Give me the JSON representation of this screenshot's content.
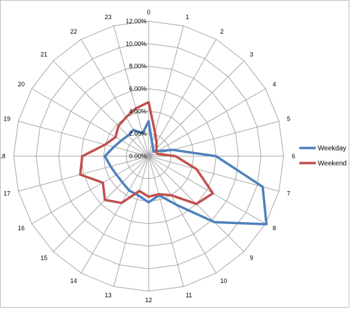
{
  "chart_data": {
    "type": "radar",
    "title": "",
    "categories": [
      "0",
      "1",
      "2",
      "3",
      "4",
      "5",
      "6",
      "7",
      "8",
      "9",
      "10",
      "11",
      "12",
      "13",
      "14",
      "15",
      "16",
      "17",
      "18",
      "19",
      "20",
      "21",
      "22",
      "23"
    ],
    "r_ticks": [
      "0.00%",
      "2.00%",
      "4.00%",
      "6.00%",
      "8.00%",
      "10.00%",
      "12.00%"
    ],
    "r_range": [
      0,
      12
    ],
    "grid": true,
    "legend_position": "right",
    "series": [
      {
        "name": "Weekday",
        "color": "#4f81bd",
        "values": [
          3.1,
          1.2,
          0.8,
          0.6,
          0.9,
          2.2,
          6.0,
          10.5,
          12.1,
          8.3,
          5.0,
          3.6,
          4.1,
          3.6,
          3.5,
          3.3,
          3.3,
          3.5,
          3.9,
          3.2,
          2.8,
          2.6,
          2.7,
          2.1
        ],
        "values_unit": "%"
      },
      {
        "name": "Weekend",
        "color": "#c0504d",
        "values": [
          4.8,
          2.2,
          1.4,
          1.0,
          0.8,
          0.8,
          2.4,
          4.4,
          6.6,
          6.0,
          4.0,
          3.5,
          3.6,
          3.2,
          4.8,
          5.5,
          4.7,
          6.3,
          5.9,
          4.0,
          3.4,
          3.8,
          4.0,
          4.4
        ],
        "values_unit": "%"
      }
    ]
  }
}
